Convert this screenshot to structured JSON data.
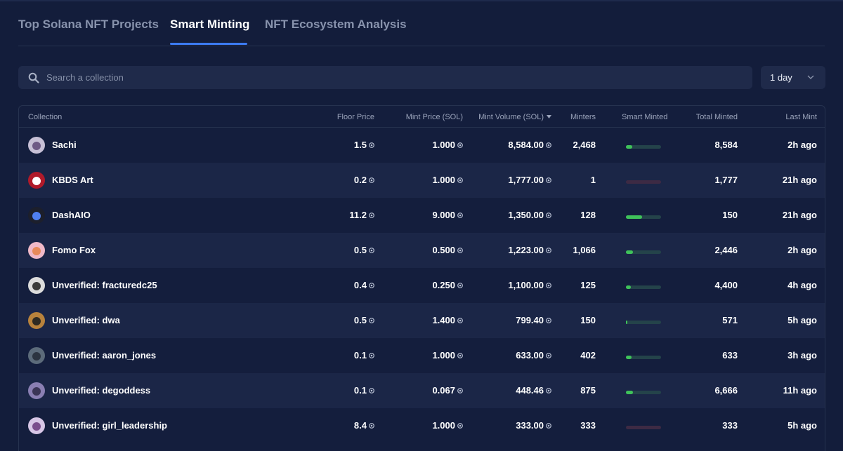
{
  "tabs": [
    {
      "label": "Top Solana NFT Projects",
      "active": false
    },
    {
      "label": "Smart Minting",
      "active": true
    },
    {
      "label": "NFT Ecosystem Analysis",
      "active": false
    }
  ],
  "search": {
    "placeholder": "Search a collection",
    "value": ""
  },
  "range_select": {
    "value": "1 day"
  },
  "table": {
    "columns": [
      "Collection",
      "Floor Price",
      "Mint Price (SOL)",
      "Mint Volume (SOL)",
      "Minters",
      "Smart Minted",
      "Total Minted",
      "Last Mint"
    ],
    "sorted_column": "Mint Volume (SOL)",
    "rows": [
      {
        "name": "Sachi",
        "floor": "1.5",
        "mint_price": "1.000",
        "volume": "8,584.00",
        "minters": "2,468",
        "smart_fraction": 0.18,
        "total": "8,584",
        "last": "2h ago",
        "avatar": "sachi-avatar"
      },
      {
        "name": "KBDS Art",
        "floor": "0.2",
        "mint_price": "1.000",
        "volume": "1,777.00",
        "minters": "1",
        "smart_fraction": 0.0,
        "total": "1,777",
        "last": "21h ago",
        "avatar": "kbds-avatar"
      },
      {
        "name": "DashAIO",
        "floor": "11.2",
        "mint_price": "9.000",
        "volume": "1,350.00",
        "minters": "128",
        "smart_fraction": 0.45,
        "total": "150",
        "last": "21h ago",
        "avatar": "dashaio-avatar"
      },
      {
        "name": "Fomo Fox",
        "floor": "0.5",
        "mint_price": "0.500",
        "volume": "1,223.00",
        "minters": "1,066",
        "smart_fraction": 0.2,
        "total": "2,446",
        "last": "2h ago",
        "avatar": "fomo-fox-avatar"
      },
      {
        "name": "Unverified: fracturedc25",
        "floor": "0.4",
        "mint_price": "0.250",
        "volume": "1,100.00",
        "minters": "125",
        "smart_fraction": 0.14,
        "total": "4,400",
        "last": "4h ago",
        "avatar": "fracturedc25-avatar"
      },
      {
        "name": "Unverified: dwa",
        "floor": "0.5",
        "mint_price": "1.400",
        "volume": "799.40",
        "minters": "150",
        "smart_fraction": 0.04,
        "total": "571",
        "last": "5h ago",
        "avatar": "dwa-avatar"
      },
      {
        "name": "Unverified: aaron_jones",
        "floor": "0.1",
        "mint_price": "1.000",
        "volume": "633.00",
        "minters": "402",
        "smart_fraction": 0.16,
        "total": "633",
        "last": "3h ago",
        "avatar": "aaron-jones-avatar"
      },
      {
        "name": "Unverified: degoddess",
        "floor": "0.1",
        "mint_price": "0.067",
        "volume": "448.46",
        "minters": "875",
        "smart_fraction": 0.2,
        "total": "6,666",
        "last": "11h ago",
        "avatar": "degoddess-avatar"
      },
      {
        "name": "Unverified: girl_leadership",
        "floor": "8.4",
        "mint_price": "1.000",
        "volume": "333.00",
        "minters": "333",
        "smart_fraction": 0.0,
        "total": "333",
        "last": "5h ago",
        "avatar": "girl-leadership-avatar"
      }
    ]
  },
  "colors": {
    "background": "#131d3b",
    "accent": "#3c7bf2",
    "smart_minted_fill": "#3fc25a",
    "bar_track_positive": "#24434a",
    "bar_track_zero": "#3d2a44"
  }
}
